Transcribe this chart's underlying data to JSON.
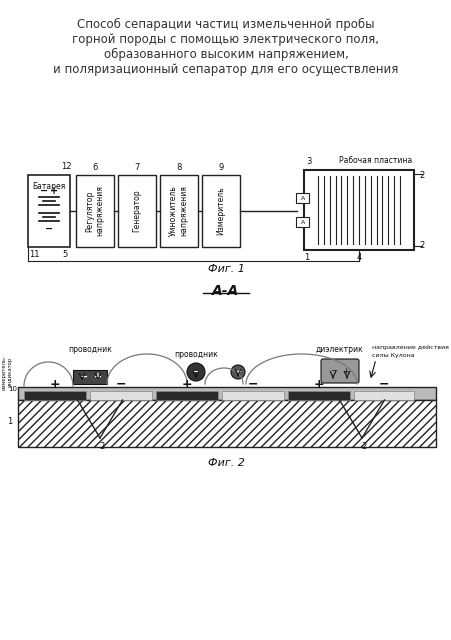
{
  "title_lines": [
    "Способ сепарации частиц измельченной пробы",
    "горной породы с помощью электрического поля,",
    "образованного высоким напряжением,",
    "и поляризационный сепаратор для его осуществления"
  ],
  "fig1_label": "Фиг. 1",
  "fig2_label": "Фиг. 2",
  "aa_label": "А-А",
  "bg_color": "#f5f5f0",
  "box_color": "#e8e8e8",
  "line_color": "#222222",
  "dark_color": "#111111"
}
